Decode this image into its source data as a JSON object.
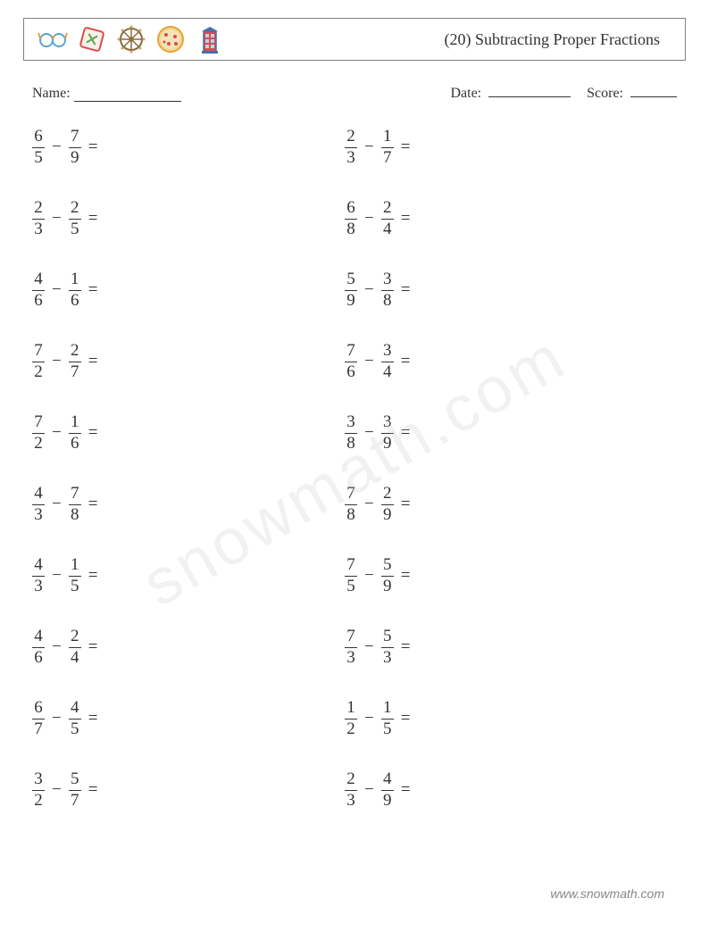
{
  "header": {
    "title": "(20) Subtracting Proper Fractions",
    "icons": [
      {
        "name": "glasses-icon",
        "colors": {
          "main": "#5ba4cf",
          "accent": "#e8a33d"
        }
      },
      {
        "name": "ticket-icon",
        "colors": {
          "main": "#d94c4c",
          "accent": "#5fa84f"
        }
      },
      {
        "name": "wheel-icon",
        "colors": {
          "main": "#8a6d3b",
          "accent": "#c9a86a"
        }
      },
      {
        "name": "pizza-icon",
        "colors": {
          "main": "#e8a33d",
          "accent": "#d94c4c"
        }
      },
      {
        "name": "booth-icon",
        "colors": {
          "main": "#4a6fa5",
          "accent": "#d94c4c"
        }
      }
    ]
  },
  "info": {
    "name_label": "Name:",
    "date_label": "Date:",
    "score_label": "Score:",
    "name_blank_width": 120,
    "date_blank_width": 92,
    "score_blank_width": 52
  },
  "styling": {
    "text_color": "#333333",
    "border_color": "#808080",
    "background_color": "#ffffff",
    "watermark_color": "rgba(200,200,200,0.25)",
    "footer_color": "#888888",
    "body_font": "Georgia, 'Times New Roman', serif",
    "problem_fontsize": 19,
    "title_fontsize": 18,
    "info_fontsize": 16
  },
  "problems": {
    "operator": "−",
    "equals": "=",
    "column1": [
      {
        "a_num": "6",
        "a_den": "5",
        "b_num": "7",
        "b_den": "9"
      },
      {
        "a_num": "2",
        "a_den": "3",
        "b_num": "2",
        "b_den": "5"
      },
      {
        "a_num": "4",
        "a_den": "6",
        "b_num": "1",
        "b_den": "6"
      },
      {
        "a_num": "7",
        "a_den": "2",
        "b_num": "2",
        "b_den": "7"
      },
      {
        "a_num": "7",
        "a_den": "2",
        "b_num": "1",
        "b_den": "6"
      },
      {
        "a_num": "4",
        "a_den": "3",
        "b_num": "7",
        "b_den": "8"
      },
      {
        "a_num": "4",
        "a_den": "3",
        "b_num": "1",
        "b_den": "5"
      },
      {
        "a_num": "4",
        "a_den": "6",
        "b_num": "2",
        "b_den": "4"
      },
      {
        "a_num": "6",
        "a_den": "7",
        "b_num": "4",
        "b_den": "5"
      },
      {
        "a_num": "3",
        "a_den": "2",
        "b_num": "5",
        "b_den": "7"
      }
    ],
    "column2": [
      {
        "a_num": "2",
        "a_den": "3",
        "b_num": "1",
        "b_den": "7"
      },
      {
        "a_num": "6",
        "a_den": "8",
        "b_num": "2",
        "b_den": "4"
      },
      {
        "a_num": "5",
        "a_den": "9",
        "b_num": "3",
        "b_den": "8"
      },
      {
        "a_num": "7",
        "a_den": "6",
        "b_num": "3",
        "b_den": "4"
      },
      {
        "a_num": "3",
        "a_den": "8",
        "b_num": "3",
        "b_den": "9"
      },
      {
        "a_num": "7",
        "a_den": "8",
        "b_num": "2",
        "b_den": "9"
      },
      {
        "a_num": "7",
        "a_den": "5",
        "b_num": "5",
        "b_den": "9"
      },
      {
        "a_num": "7",
        "a_den": "3",
        "b_num": "5",
        "b_den": "3"
      },
      {
        "a_num": "1",
        "a_den": "2",
        "b_num": "1",
        "b_den": "5"
      },
      {
        "a_num": "2",
        "a_den": "3",
        "b_num": "4",
        "b_den": "9"
      }
    ]
  },
  "watermark": "snowmath.com",
  "footer": "www.snowmath.com"
}
